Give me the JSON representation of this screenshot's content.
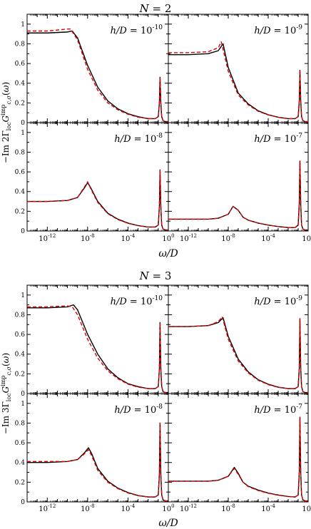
{
  "colors": {
    "black": "#000000",
    "red": "#e00000"
  },
  "x_tick_labels": [
    {
      "base": "10",
      "exp": "-12"
    },
    {
      "base": "10",
      "exp": "-8"
    },
    {
      "base": "10",
      "exp": "-4"
    },
    {
      "base": "10",
      "exp": "0"
    }
  ],
  "y_tick_labels": [
    "0",
    "0.2",
    "0.4",
    "0.6",
    "0.8",
    "1"
  ],
  "xlabel": "ω/D",
  "chart_data": [
    {
      "type": "line",
      "title": "N = 2",
      "ylabel": "−Im 2Γ_{loc} G^{imp}_{c,σ}(ω)",
      "xscale": "log",
      "xlim": [
        1e-14,
        1
      ],
      "ylim": [
        0,
        1.1
      ],
      "panels": [
        {
          "label": "h/D = 10^{-10}",
          "series": [
            {
              "color": "black",
              "style": "solid",
              "x": [
                1e-14,
                1e-12,
                1e-10,
                3e-10,
                1e-09,
                1e-08,
                1e-07,
                1e-06,
                1e-05,
                0.0001,
                0.001,
                0.01,
                0.05,
                0.1,
                0.13,
                0.15,
                0.18,
                0.22,
                0.3,
                0.5,
                1
              ],
              "y": [
                0.91,
                0.91,
                0.92,
                0.93,
                0.86,
                0.58,
                0.36,
                0.22,
                0.14,
                0.09,
                0.06,
                0.04,
                0.04,
                0.06,
                0.2,
                0.46,
                0.2,
                0.06,
                0.02,
                0.01,
                0.01
              ]
            },
            {
              "color": "red",
              "style": "dashed",
              "x": [
                1e-14,
                1e-12,
                1e-10,
                2e-10,
                1e-09,
                1e-08,
                1e-07,
                1e-06,
                1e-05,
                0.0001,
                0.001,
                0.01,
                0.05,
                0.1,
                0.13,
                0.15,
                0.18,
                0.22,
                0.3,
                0.5,
                1
              ],
              "y": [
                0.93,
                0.93,
                0.95,
                0.95,
                0.84,
                0.54,
                0.33,
                0.2,
                0.13,
                0.085,
                0.055,
                0.04,
                0.04,
                0.06,
                0.2,
                0.46,
                0.2,
                0.06,
                0.02,
                0.01,
                0.01
              ]
            }
          ]
        },
        {
          "label": "h/D = 10^{-9}",
          "series": [
            {
              "color": "black",
              "style": "solid",
              "x": [
                1e-14,
                1e-12,
                1e-10,
                1e-09,
                3e-09,
                1e-08,
                1e-07,
                1e-06,
                1e-05,
                0.0001,
                0.001,
                0.01,
                0.05,
                0.1,
                0.13,
                0.15,
                0.18,
                0.22,
                0.3,
                0.5,
                1
              ],
              "y": [
                0.69,
                0.69,
                0.7,
                0.73,
                0.8,
                0.56,
                0.3,
                0.19,
                0.12,
                0.08,
                0.055,
                0.04,
                0.04,
                0.06,
                0.22,
                0.53,
                0.22,
                0.06,
                0.02,
                0.01,
                0.01
              ]
            },
            {
              "color": "red",
              "style": "dashed",
              "x": [
                1e-14,
                1e-12,
                1e-10,
                1e-09,
                2e-09,
                1e-08,
                1e-07,
                1e-06,
                1e-05,
                0.0001,
                0.001,
                0.01,
                0.05,
                0.1,
                0.13,
                0.15,
                0.18,
                0.22,
                0.3,
                0.5,
                1
              ],
              "y": [
                0.71,
                0.71,
                0.72,
                0.76,
                0.82,
                0.52,
                0.28,
                0.18,
                0.115,
                0.078,
                0.054,
                0.04,
                0.04,
                0.06,
                0.22,
                0.53,
                0.22,
                0.06,
                0.02,
                0.01,
                0.01
              ]
            }
          ]
        },
        {
          "label": "h/D = 10^{-8}",
          "series": [
            {
              "color": "black",
              "style": "solid",
              "x": [
                1e-14,
                1e-12,
                1e-10,
                1e-09,
                5e-09,
                1e-08,
                2e-08,
                1e-07,
                1e-06,
                1e-05,
                0.0001,
                0.001,
                0.01,
                0.05,
                0.1,
                0.13,
                0.15,
                0.18,
                0.22,
                0.3,
                0.5,
                1
              ],
              "y": [
                0.3,
                0.3,
                0.31,
                0.34,
                0.44,
                0.49,
                0.44,
                0.3,
                0.18,
                0.12,
                0.08,
                0.055,
                0.04,
                0.04,
                0.06,
                0.25,
                0.62,
                0.25,
                0.06,
                0.02,
                0.01,
                0.01
              ]
            },
            {
              "color": "red",
              "style": "dashed",
              "x": [
                1e-14,
                1e-12,
                1e-10,
                1e-09,
                5e-09,
                1e-08,
                2e-08,
                1e-07,
                1e-06,
                1e-05,
                0.0001,
                0.001,
                0.01,
                0.05,
                0.1,
                0.13,
                0.15,
                0.18,
                0.22,
                0.3,
                0.5,
                1
              ],
              "y": [
                0.3,
                0.3,
                0.31,
                0.34,
                0.45,
                0.5,
                0.43,
                0.29,
                0.175,
                0.115,
                0.078,
                0.054,
                0.04,
                0.04,
                0.06,
                0.25,
                0.62,
                0.25,
                0.06,
                0.02,
                0.01,
                0.01
              ]
            }
          ]
        },
        {
          "label": "h/D = 10^{-7}",
          "series": [
            {
              "color": "black",
              "style": "solid",
              "x": [
                1e-14,
                1e-12,
                1e-10,
                1e-09,
                1e-08,
                3e-08,
                1e-07,
                3e-07,
                1e-06,
                1e-05,
                0.0001,
                0.001,
                0.01,
                0.05,
                0.1,
                0.13,
                0.15,
                0.18,
                0.22,
                0.3,
                0.5,
                1
              ],
              "y": [
                0.12,
                0.12,
                0.12,
                0.13,
                0.17,
                0.25,
                0.21,
                0.14,
                0.11,
                0.08,
                0.06,
                0.045,
                0.035,
                0.035,
                0.06,
                0.28,
                0.71,
                0.28,
                0.06,
                0.02,
                0.01,
                0.01
              ]
            },
            {
              "color": "red",
              "style": "dashed",
              "x": [
                1e-14,
                1e-12,
                1e-10,
                1e-09,
                1e-08,
                3e-08,
                1e-07,
                3e-07,
                1e-06,
                1e-05,
                0.0001,
                0.001,
                0.01,
                0.05,
                0.1,
                0.13,
                0.15,
                0.18,
                0.22,
                0.3,
                0.5,
                1
              ],
              "y": [
                0.12,
                0.12,
                0.12,
                0.13,
                0.17,
                0.25,
                0.21,
                0.14,
                0.11,
                0.08,
                0.06,
                0.045,
                0.035,
                0.035,
                0.06,
                0.28,
                0.71,
                0.28,
                0.06,
                0.02,
                0.01,
                0.01
              ]
            }
          ]
        }
      ]
    },
    {
      "type": "line",
      "title": "N = 3",
      "ylabel": "−Im 3Γ_{loc} G^{imp}_{c,σ}(ω)",
      "xscale": "log",
      "xlim": [
        1e-14,
        1
      ],
      "ylim": [
        0,
        1.1
      ],
      "panels": [
        {
          "label": "h/D = 10^{-10}",
          "series": [
            {
              "color": "black",
              "style": "solid",
              "x": [
                1e-14,
                1e-12,
                1e-10,
                4e-10,
                1e-09,
                1e-08,
                1e-07,
                1e-06,
                1e-05,
                0.0001,
                0.001,
                0.01,
                0.05,
                0.1,
                0.13,
                0.15,
                0.18,
                0.22,
                0.3,
                0.5,
                1
              ],
              "y": [
                0.87,
                0.87,
                0.88,
                0.9,
                0.85,
                0.6,
                0.4,
                0.25,
                0.16,
                0.1,
                0.07,
                0.05,
                0.05,
                0.07,
                0.25,
                0.72,
                0.25,
                0.07,
                0.02,
                0.01,
                0.01
              ]
            },
            {
              "color": "red",
              "style": "dashed",
              "x": [
                1e-14,
                1e-12,
                1e-10,
                3e-10,
                1e-09,
                1e-08,
                1e-07,
                1e-06,
                1e-05,
                0.0001,
                0.001,
                0.01,
                0.05,
                0.1,
                0.13,
                0.15,
                0.18,
                0.22,
                0.3,
                0.5,
                1
              ],
              "y": [
                0.88,
                0.88,
                0.89,
                0.88,
                0.8,
                0.55,
                0.36,
                0.23,
                0.15,
                0.095,
                0.065,
                0.05,
                0.05,
                0.07,
                0.25,
                0.72,
                0.25,
                0.07,
                0.02,
                0.01,
                0.01
              ]
            }
          ]
        },
        {
          "label": "h/D = 10^{-9}",
          "series": [
            {
              "color": "black",
              "style": "solid",
              "x": [
                1e-14,
                1e-12,
                1e-10,
                1e-09,
                3e-09,
                1e-08,
                1e-07,
                1e-06,
                1e-05,
                0.0001,
                0.001,
                0.01,
                0.05,
                0.1,
                0.13,
                0.15,
                0.18,
                0.22,
                0.3,
                0.5,
                1
              ],
              "y": [
                0.68,
                0.68,
                0.69,
                0.72,
                0.77,
                0.58,
                0.35,
                0.22,
                0.14,
                0.095,
                0.065,
                0.05,
                0.05,
                0.07,
                0.26,
                0.76,
                0.26,
                0.07,
                0.02,
                0.01,
                0.01
              ]
            },
            {
              "color": "red",
              "style": "dashed",
              "x": [
                1e-14,
                1e-12,
                1e-10,
                1e-09,
                2.5e-09,
                1e-08,
                1e-07,
                1e-06,
                1e-05,
                0.0001,
                0.001,
                0.01,
                0.05,
                0.1,
                0.13,
                0.15,
                0.18,
                0.22,
                0.3,
                0.5,
                1
              ],
              "y": [
                0.68,
                0.68,
                0.69,
                0.73,
                0.78,
                0.55,
                0.33,
                0.21,
                0.135,
                0.09,
                0.063,
                0.05,
                0.05,
                0.07,
                0.26,
                0.76,
                0.26,
                0.07,
                0.02,
                0.01,
                0.01
              ]
            }
          ]
        },
        {
          "label": "h/D = 10^{-8}",
          "series": [
            {
              "color": "black",
              "style": "solid",
              "x": [
                1e-14,
                1e-12,
                1e-10,
                1e-09,
                5e-09,
                1.2e-08,
                2.5e-08,
                1e-07,
                1e-06,
                1e-05,
                0.0001,
                0.001,
                0.01,
                0.05,
                0.1,
                0.13,
                0.15,
                0.18,
                0.22,
                0.3,
                0.5,
                1
              ],
              "y": [
                0.4,
                0.4,
                0.41,
                0.43,
                0.5,
                0.55,
                0.49,
                0.34,
                0.21,
                0.14,
                0.095,
                0.065,
                0.05,
                0.05,
                0.07,
                0.28,
                0.8,
                0.28,
                0.07,
                0.02,
                0.01,
                0.01
              ]
            },
            {
              "color": "red",
              "style": "dashed",
              "x": [
                1e-14,
                1e-12,
                1e-10,
                1e-09,
                5e-09,
                1.2e-08,
                2.5e-08,
                1e-07,
                1e-06,
                1e-05,
                0.0001,
                0.001,
                0.01,
                0.05,
                0.1,
                0.13,
                0.15,
                0.18,
                0.22,
                0.3,
                0.5,
                1
              ],
              "y": [
                0.41,
                0.41,
                0.41,
                0.43,
                0.49,
                0.53,
                0.47,
                0.32,
                0.2,
                0.135,
                0.09,
                0.063,
                0.05,
                0.05,
                0.07,
                0.28,
                0.8,
                0.28,
                0.07,
                0.02,
                0.01,
                0.01
              ]
            }
          ]
        },
        {
          "label": "h/D = 10^{-7}",
          "series": [
            {
              "color": "black",
              "style": "solid",
              "x": [
                1e-14,
                1e-12,
                1e-10,
                1e-09,
                1e-08,
                4e-08,
                1e-07,
                3e-07,
                1e-06,
                1e-05,
                0.0001,
                0.001,
                0.01,
                0.05,
                0.1,
                0.13,
                0.15,
                0.18,
                0.22,
                0.3,
                0.5,
                1
              ],
              "y": [
                0.21,
                0.21,
                0.21,
                0.22,
                0.26,
                0.35,
                0.29,
                0.2,
                0.16,
                0.12,
                0.09,
                0.07,
                0.055,
                0.05,
                0.07,
                0.3,
                0.86,
                0.3,
                0.07,
                0.02,
                0.01,
                0.01
              ]
            },
            {
              "color": "red",
              "style": "dashed",
              "x": [
                1e-14,
                1e-12,
                1e-10,
                1e-09,
                1e-08,
                4e-08,
                1e-07,
                3e-07,
                1e-06,
                1e-05,
                0.0001,
                0.001,
                0.01,
                0.05,
                0.1,
                0.13,
                0.15,
                0.18,
                0.22,
                0.3,
                0.5,
                1
              ],
              "y": [
                0.21,
                0.21,
                0.21,
                0.22,
                0.26,
                0.34,
                0.28,
                0.2,
                0.155,
                0.115,
                0.088,
                0.068,
                0.055,
                0.05,
                0.07,
                0.3,
                0.86,
                0.3,
                0.07,
                0.02,
                0.01,
                0.01
              ]
            }
          ]
        }
      ]
    }
  ]
}
